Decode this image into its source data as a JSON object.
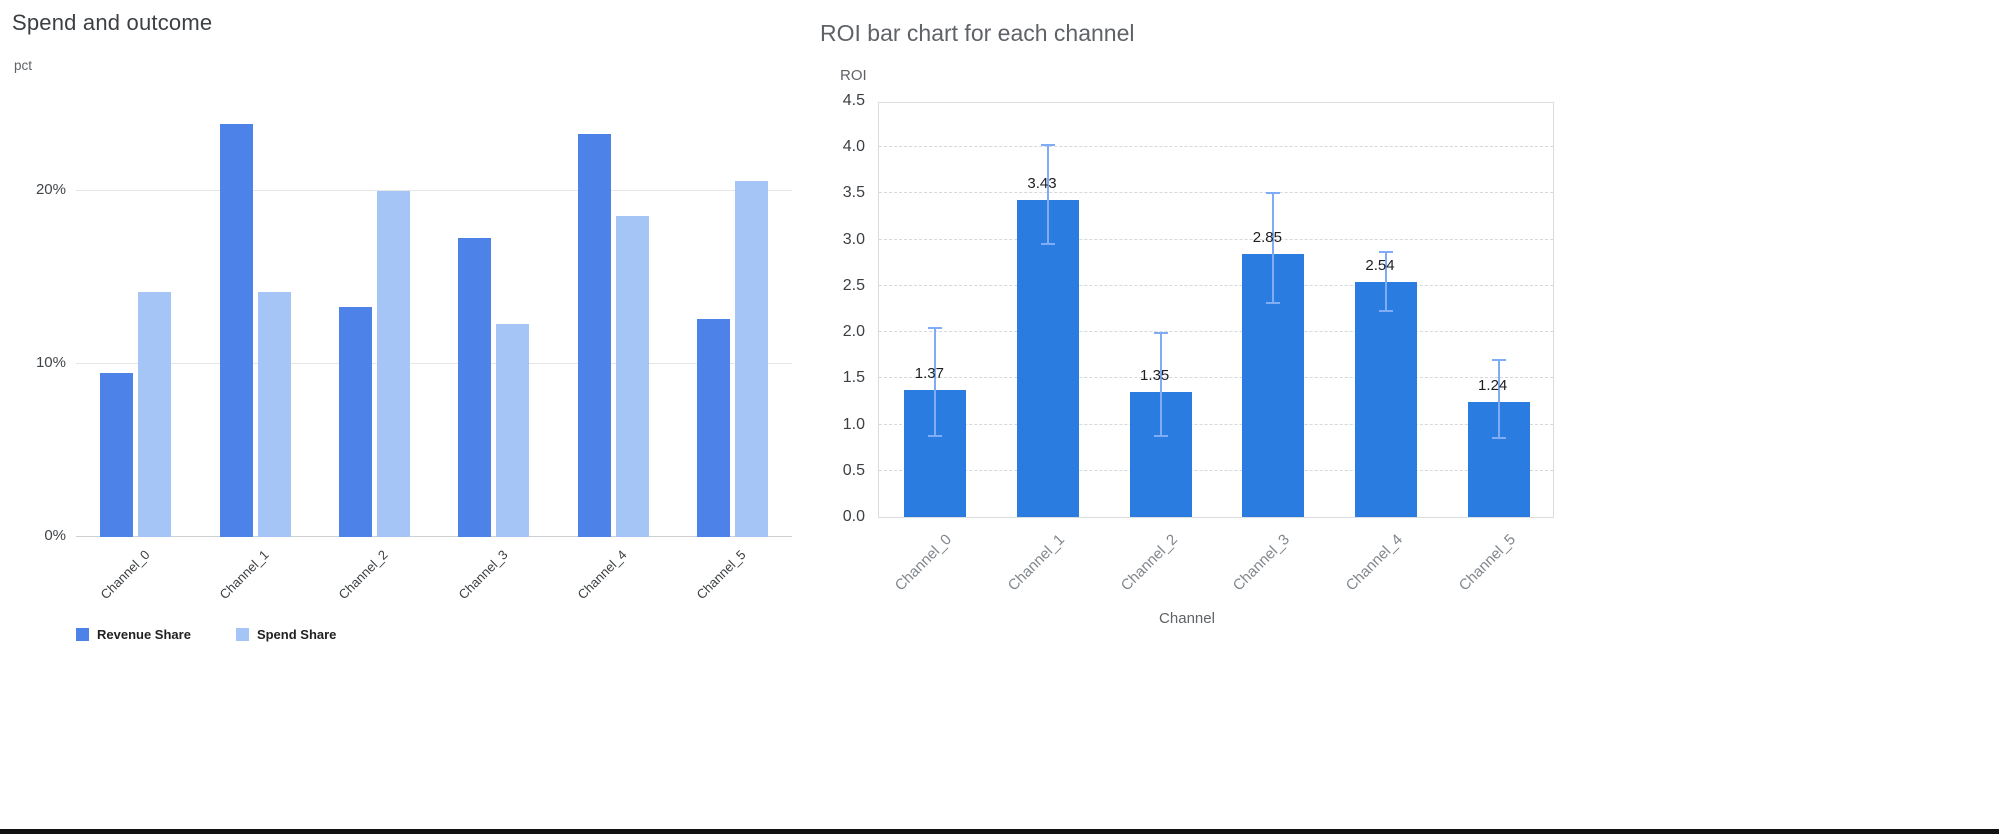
{
  "page": {
    "background": "#ffffff",
    "divider_color": "#111111"
  },
  "chart_data": [
    {
      "id": "spend_outcome",
      "type": "bar",
      "title": "Spend and outcome",
      "y_axis_note": "pct",
      "categories": [
        "Channel_0",
        "Channel_1",
        "Channel_2",
        "Channel_3",
        "Channel_4",
        "Channel_5"
      ],
      "series": [
        {
          "name": "Revenue Share",
          "color": "#4d82e8",
          "values": [
            9.5,
            23.9,
            13.3,
            17.3,
            23.3,
            12.6
          ]
        },
        {
          "name": "Spend Share",
          "color": "#a6c5f7",
          "values": [
            14.2,
            14.2,
            20.0,
            12.3,
            18.6,
            20.6
          ]
        }
      ],
      "ylim": [
        0,
        25
      ],
      "y_ticks": [
        {
          "value": 0,
          "label": "0%"
        },
        {
          "value": 10,
          "label": "10%"
        },
        {
          "value": 20,
          "label": "20%"
        }
      ],
      "grid": "solid",
      "legend_position": "bottom"
    },
    {
      "id": "roi_by_channel",
      "type": "bar",
      "title": "ROI bar chart for each channel",
      "y_axis_title": "ROI",
      "x_axis_title": "Channel",
      "categories": [
        "Channel_0",
        "Channel_1",
        "Channel_2",
        "Channel_3",
        "Channel_4",
        "Channel_5"
      ],
      "values": [
        1.37,
        3.43,
        1.35,
        2.85,
        2.54,
        1.24
      ],
      "error_low": [
        0.88,
        2.95,
        0.88,
        2.31,
        2.23,
        0.85
      ],
      "error_high": [
        2.04,
        4.02,
        1.99,
        3.51,
        2.87,
        1.7
      ],
      "bar_color": "#2b7ce0",
      "error_color": "#80abf5",
      "ylim": [
        0,
        4.5
      ],
      "y_tick_step": 0.5,
      "grid": "dashed",
      "legend_position": "none"
    }
  ]
}
